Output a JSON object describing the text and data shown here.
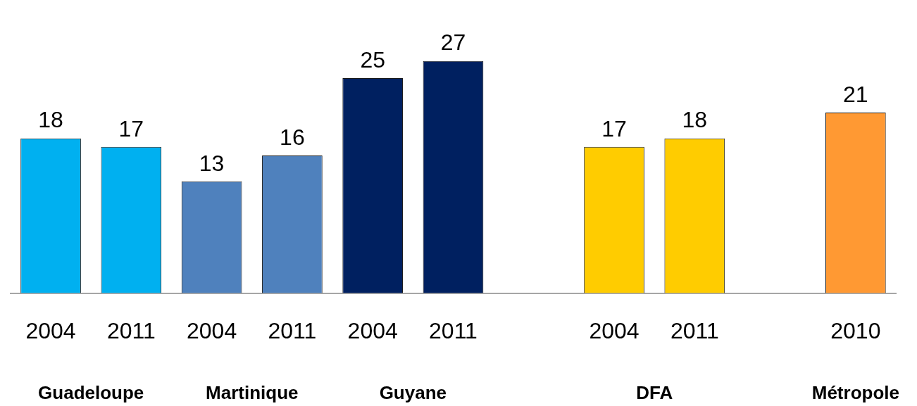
{
  "chart_data": {
    "type": "bar",
    "categories": [
      "2004",
      "2011",
      "2004",
      "2011",
      "2004",
      "2011",
      null,
      "2004",
      "2011",
      null,
      "2010"
    ],
    "values": [
      18,
      17,
      13,
      16,
      25,
      27,
      null,
      17,
      18,
      null,
      21
    ],
    "colors": [
      "#00b0f0",
      "#00b0f0",
      "#4f81bd",
      "#4f81bd",
      "#002060",
      "#002060",
      null,
      "#ffcc00",
      "#ffcc00",
      null,
      "#ff9933"
    ],
    "data_labels": true,
    "annotations": [
      "Guadeloupe",
      "Martinique",
      "Guyane",
      "DFA",
      "Métropole"
    ],
    "grid": false,
    "legend": false
  }
}
